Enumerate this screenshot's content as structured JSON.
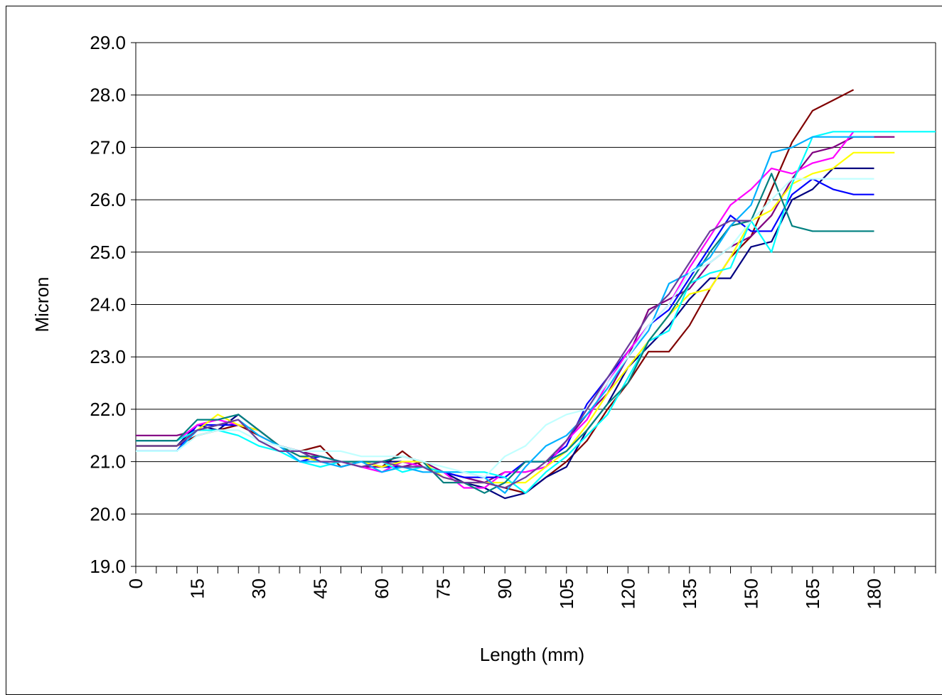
{
  "chart_data": {
    "type": "line",
    "title": "",
    "xlabel": "Length (mm)",
    "ylabel": "Micron",
    "xlim": [
      0,
      195
    ],
    "ylim": [
      19.0,
      29.0
    ],
    "grid": "horizontal",
    "legend": "none",
    "x_tick_labels": [
      "0",
      "15",
      "30",
      "45",
      "60",
      "75",
      "90",
      "105",
      "120",
      "135",
      "150",
      "165",
      "180"
    ],
    "y_tick_labels": [
      "19.0",
      "20.0",
      "21.0",
      "22.0",
      "23.0",
      "24.0",
      "25.0",
      "26.0",
      "27.0",
      "28.0",
      "29.0"
    ],
    "series": [
      {
        "color": "#800000",
        "x": [
          0,
          10,
          15,
          20,
          25,
          30,
          35,
          40,
          45,
          50,
          55,
          60,
          65,
          70,
          75,
          80,
          85,
          90,
          95,
          100,
          105,
          110,
          115,
          120,
          125,
          130,
          135,
          140,
          145,
          150,
          155,
          160,
          165,
          170,
          175
        ],
        "y": [
          21.3,
          21.3,
          21.5,
          21.6,
          21.7,
          21.5,
          21.3,
          21.2,
          21.3,
          20.9,
          21.0,
          20.9,
          21.2,
          20.9,
          20.8,
          20.7,
          20.6,
          20.5,
          20.4,
          20.7,
          21.0,
          21.4,
          22.0,
          22.5,
          23.1,
          23.1,
          23.6,
          24.3,
          24.9,
          25.3,
          26.2,
          27.1,
          27.7,
          27.9,
          28.1
        ]
      },
      {
        "color": "#800080",
        "x": [
          0,
          10,
          15,
          20,
          25,
          30,
          35,
          40,
          45,
          50,
          55,
          60,
          65,
          70,
          75,
          80,
          85,
          90,
          95,
          100,
          105,
          110,
          115,
          120,
          125,
          130,
          135,
          140,
          145,
          150,
          155,
          160,
          165,
          170,
          175,
          180,
          185
        ],
        "y": [
          21.5,
          21.5,
          21.6,
          21.7,
          21.7,
          21.6,
          21.3,
          21.2,
          21.1,
          21.0,
          20.9,
          20.9,
          20.9,
          21.0,
          20.8,
          20.7,
          20.6,
          20.8,
          20.8,
          20.9,
          21.4,
          21.9,
          22.3,
          23.0,
          23.9,
          24.1,
          24.3,
          24.8,
          25.1,
          25.3,
          25.7,
          26.4,
          26.9,
          27.0,
          27.2,
          27.2,
          27.2
        ]
      },
      {
        "color": "#000080",
        "x": [
          0,
          10,
          15,
          20,
          25,
          30,
          35,
          40,
          45,
          50,
          55,
          60,
          65,
          70,
          75,
          80,
          85,
          90,
          95,
          100,
          105,
          110,
          115,
          120,
          125,
          130,
          135,
          140,
          145,
          150,
          155,
          160,
          165,
          170,
          175,
          180
        ],
        "y": [
          21.3,
          21.3,
          21.7,
          21.6,
          21.9,
          21.6,
          21.3,
          21.2,
          21.0,
          21.0,
          21.0,
          21.0,
          21.0,
          20.9,
          20.8,
          20.6,
          20.5,
          20.3,
          20.4,
          20.7,
          20.9,
          21.6,
          22.1,
          22.8,
          23.2,
          23.6,
          24.1,
          24.5,
          24.5,
          25.1,
          25.2,
          26.0,
          26.2,
          26.6,
          26.6,
          26.6
        ]
      },
      {
        "color": "#0000ff",
        "x": [
          0,
          10,
          15,
          20,
          25,
          30,
          35,
          40,
          45,
          50,
          55,
          60,
          65,
          70,
          75,
          80,
          85,
          90,
          95,
          100,
          105,
          110,
          115,
          120,
          125,
          130,
          135,
          140,
          145,
          150,
          155,
          160,
          165,
          170,
          175,
          180
        ],
        "y": [
          21.2,
          21.2,
          21.7,
          21.7,
          21.7,
          21.6,
          21.3,
          21.0,
          21.1,
          21.0,
          21.0,
          20.9,
          20.9,
          20.9,
          20.8,
          20.7,
          20.7,
          20.7,
          21.0,
          21.0,
          21.3,
          22.1,
          22.6,
          23.1,
          23.6,
          23.9,
          24.5,
          25.1,
          25.7,
          25.4,
          25.4,
          26.1,
          26.4,
          26.2,
          26.1,
          26.1
        ]
      },
      {
        "color": "#ff00ff",
        "x": [
          0,
          10,
          15,
          20,
          25,
          30,
          35,
          40,
          45,
          50,
          55,
          60,
          65,
          70,
          75,
          80,
          85,
          90,
          95,
          100,
          105,
          110,
          115,
          120,
          125,
          130,
          135,
          140,
          145,
          150,
          155,
          160,
          165,
          170,
          175
        ],
        "y": [
          21.4,
          21.4,
          21.7,
          21.8,
          21.7,
          21.6,
          21.3,
          21.1,
          21.0,
          21.0,
          20.9,
          20.8,
          21.0,
          20.9,
          20.8,
          20.5,
          20.5,
          20.8,
          20.8,
          20.9,
          21.4,
          21.8,
          22.5,
          23.1,
          23.6,
          24.0,
          24.7,
          25.3,
          25.9,
          26.2,
          26.6,
          26.5,
          26.7,
          26.8,
          27.3
        ]
      },
      {
        "color": "#ffff00",
        "x": [
          0,
          10,
          15,
          20,
          25,
          30,
          35,
          40,
          45,
          50,
          55,
          60,
          65,
          70,
          75,
          80,
          85,
          90,
          95,
          100,
          105,
          110,
          115,
          120,
          125,
          130,
          135,
          140,
          145,
          150,
          155,
          160,
          165,
          170,
          175,
          180,
          185
        ],
        "y": [
          21.3,
          21.3,
          21.6,
          21.9,
          21.7,
          21.6,
          21.3,
          21.1,
          21.0,
          21.0,
          21.0,
          20.9,
          21.0,
          21.0,
          20.7,
          20.6,
          20.6,
          20.6,
          20.6,
          20.9,
          21.2,
          21.7,
          22.3,
          22.8,
          23.3,
          23.8,
          24.2,
          24.3,
          24.9,
          25.6,
          25.8,
          26.3,
          26.5,
          26.6,
          26.9,
          26.9,
          26.9
        ]
      },
      {
        "color": "#00ffff",
        "x": [
          0,
          10,
          15,
          20,
          25,
          30,
          35,
          40,
          45,
          50,
          55,
          60,
          65,
          70,
          75,
          80,
          85,
          90,
          95,
          100,
          105,
          110,
          115,
          120,
          125,
          130,
          135,
          140,
          145,
          150,
          155,
          160,
          165,
          170,
          175,
          180,
          185,
          190,
          195
        ],
        "y": [
          21.4,
          21.4,
          21.6,
          21.6,
          21.5,
          21.3,
          21.2,
          21.0,
          20.9,
          21.0,
          21.0,
          21.0,
          20.8,
          20.9,
          20.8,
          20.8,
          20.8,
          20.7,
          20.4,
          20.8,
          21.1,
          21.5,
          21.9,
          22.6,
          23.3,
          23.5,
          24.4,
          24.6,
          24.7,
          25.6,
          25.0,
          26.3,
          27.2,
          27.3,
          27.3,
          27.3,
          27.3,
          27.3,
          27.3
        ]
      },
      {
        "color": "#008080",
        "x": [
          0,
          10,
          15,
          20,
          25,
          30,
          35,
          40,
          45,
          50,
          55,
          60,
          65,
          70,
          75,
          80,
          85,
          90,
          95,
          100,
          105,
          110,
          115,
          120,
          125,
          130,
          135,
          140,
          145,
          150,
          155,
          160,
          165,
          170,
          175,
          180
        ],
        "y": [
          21.4,
          21.4,
          21.8,
          21.8,
          21.9,
          21.6,
          21.3,
          21.1,
          21.1,
          21.0,
          21.0,
          21.0,
          21.1,
          21.0,
          20.6,
          20.6,
          20.4,
          20.6,
          21.0,
          21.0,
          21.2,
          21.6,
          22.1,
          22.5,
          23.3,
          23.8,
          24.4,
          25.0,
          25.5,
          25.6,
          26.5,
          25.5,
          25.4,
          25.4,
          25.4,
          25.4
        ]
      },
      {
        "color": "#00b0ff",
        "x": [
          0,
          10,
          15,
          20,
          25,
          30,
          35,
          40,
          45,
          50,
          55,
          60,
          65,
          70,
          75,
          80,
          85,
          90,
          95,
          100,
          105,
          110,
          115,
          120,
          125,
          130,
          135,
          140,
          145,
          150,
          155,
          160,
          165,
          170,
          175,
          180
        ],
        "y": [
          21.2,
          21.2,
          21.6,
          21.7,
          21.8,
          21.5,
          21.3,
          21.0,
          21.0,
          20.9,
          21.0,
          20.8,
          20.9,
          20.8,
          20.8,
          20.8,
          20.7,
          20.4,
          20.9,
          21.3,
          21.5,
          21.9,
          22.4,
          23.0,
          23.5,
          24.4,
          24.6,
          24.9,
          25.5,
          25.9,
          26.9,
          27.0,
          27.2,
          27.2,
          27.2,
          27.2
        ]
      },
      {
        "color": "#c0ffff",
        "x": [
          0,
          10,
          15,
          20,
          25,
          30,
          35,
          40,
          45,
          50,
          55,
          60,
          65,
          70,
          75,
          80,
          85,
          90,
          95,
          100,
          105,
          110,
          115,
          120,
          125,
          130,
          135,
          140,
          145,
          150,
          155,
          160,
          165,
          170,
          175,
          180
        ],
        "y": [
          21.2,
          21.2,
          21.5,
          21.6,
          21.6,
          21.4,
          21.3,
          21.2,
          21.2,
          21.2,
          21.1,
          21.1,
          21.1,
          21.0,
          20.9,
          20.8,
          20.7,
          21.1,
          21.3,
          21.7,
          21.9,
          22.0,
          22.5,
          23.0,
          23.6,
          24.0,
          24.6,
          24.8,
          25.1,
          25.6,
          26.0,
          26.4,
          26.4,
          26.4,
          26.4,
          26.4
        ]
      },
      {
        "color": "#6a3d9a",
        "x": [
          0,
          10,
          15,
          20,
          25,
          30,
          35,
          40,
          45,
          50,
          55,
          60,
          65,
          70,
          75,
          80,
          85,
          90,
          95,
          100,
          105,
          110,
          115,
          120,
          125,
          130,
          135,
          140,
          145,
          150
        ],
        "y": [
          21.3,
          21.3,
          21.6,
          21.7,
          21.8,
          21.4,
          21.2,
          21.2,
          21.0,
          21.0,
          20.9,
          21.0,
          20.9,
          20.9,
          20.7,
          20.6,
          20.6,
          20.5,
          20.7,
          21.0,
          21.4,
          22.0,
          22.6,
          23.2,
          23.8,
          24.2,
          24.8,
          25.4,
          25.6,
          25.6
        ]
      }
    ]
  }
}
